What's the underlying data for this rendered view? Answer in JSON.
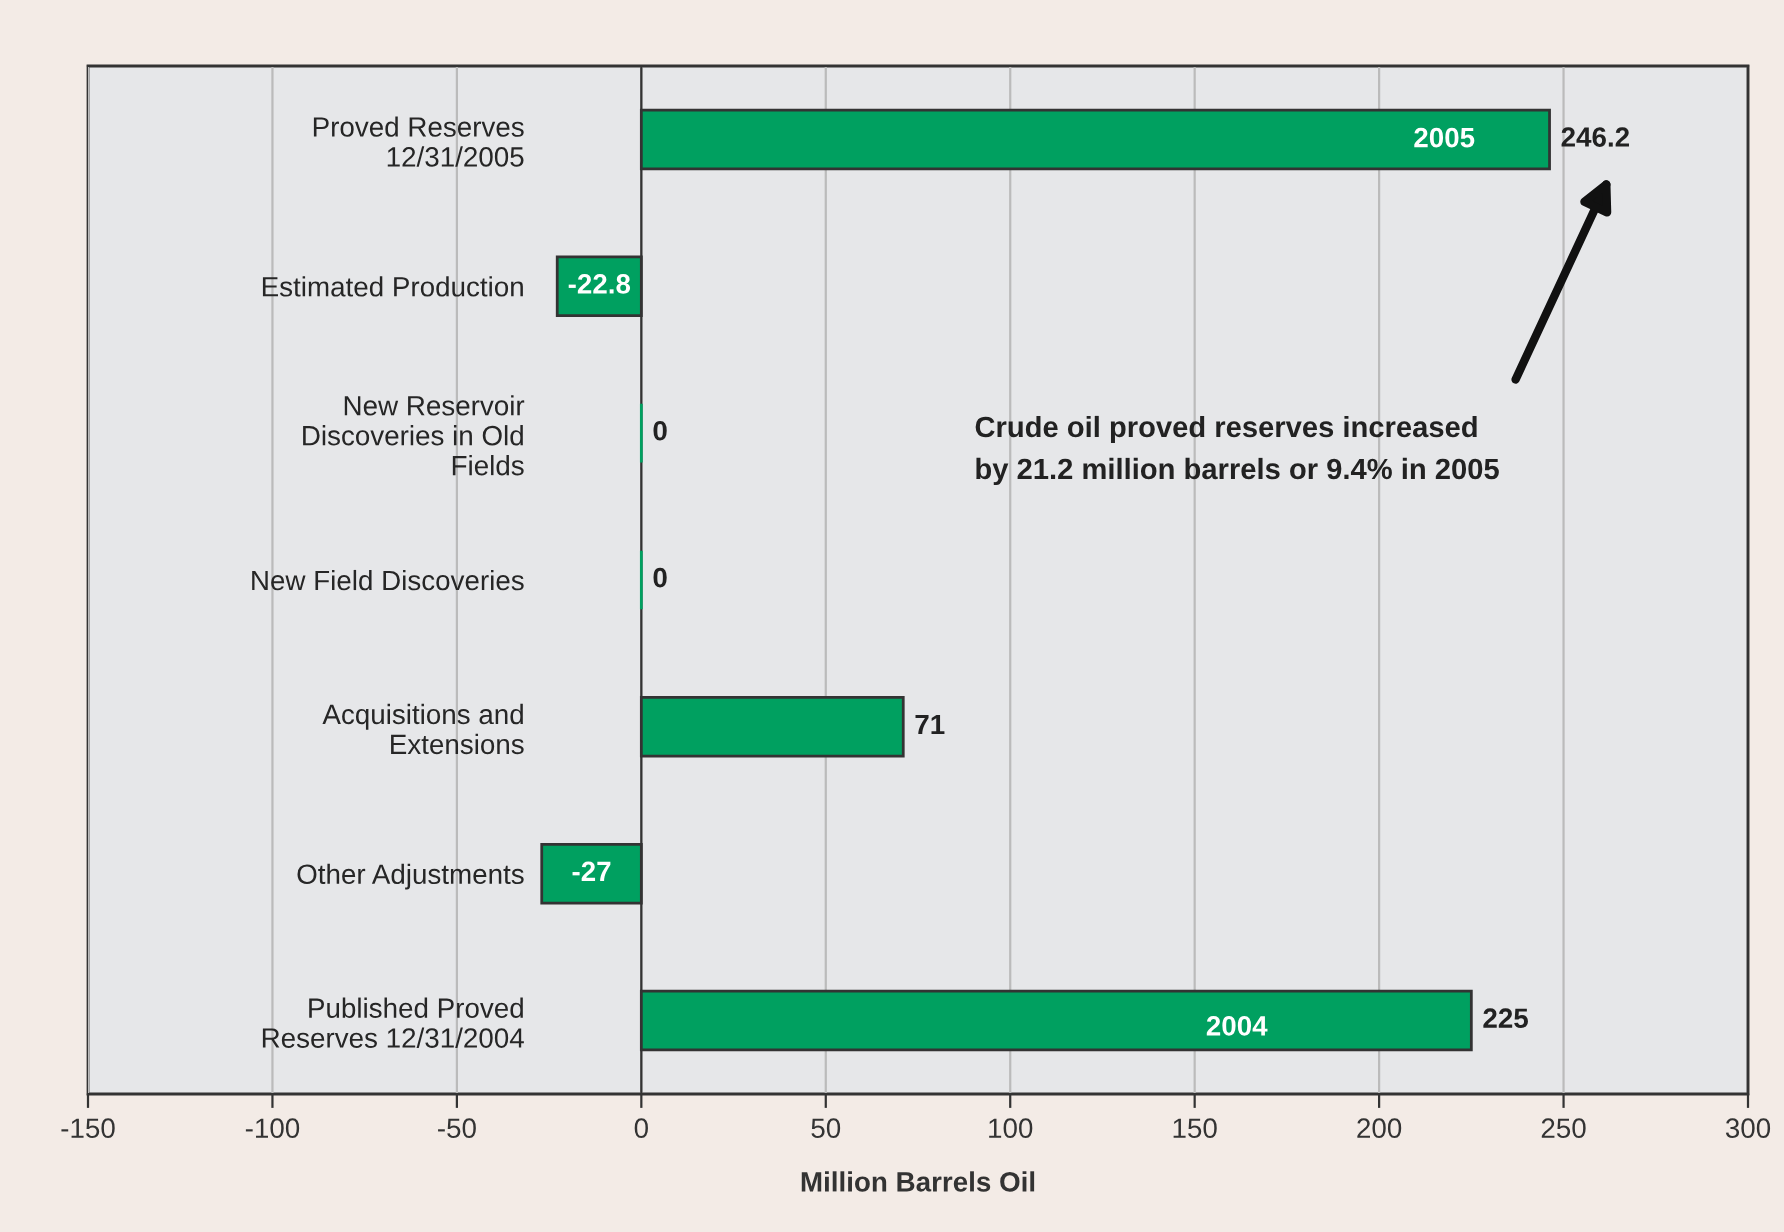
{
  "chart_data": {
    "type": "bar",
    "orientation": "horizontal",
    "categories": [
      "Proved Reserves\n12/31/2005",
      "Estimated Production",
      "New Reservoir\nDiscoveries in Old\nFields",
      "New Field Discoveries",
      "Acquisitions and\nExtensions",
      "Other Adjustments",
      "Published Proved\nReserves 12/31/2004"
    ],
    "values": [
      246.2,
      -22.8,
      0,
      0,
      71,
      -27,
      225
    ],
    "color": "#00a060",
    "data_labels": true,
    "xlim": [
      -150,
      300
    ],
    "xticks": [
      -150,
      -100,
      -50,
      0,
      50,
      100,
      150,
      200,
      250,
      300
    ],
    "xlabel": "Million Barrels Oil",
    "grid": "x",
    "annotations": [
      "2005",
      "2004",
      "Crude oil proved reserves increased\nby 21.2 million barrels or 9.4% in 2005"
    ]
  }
}
